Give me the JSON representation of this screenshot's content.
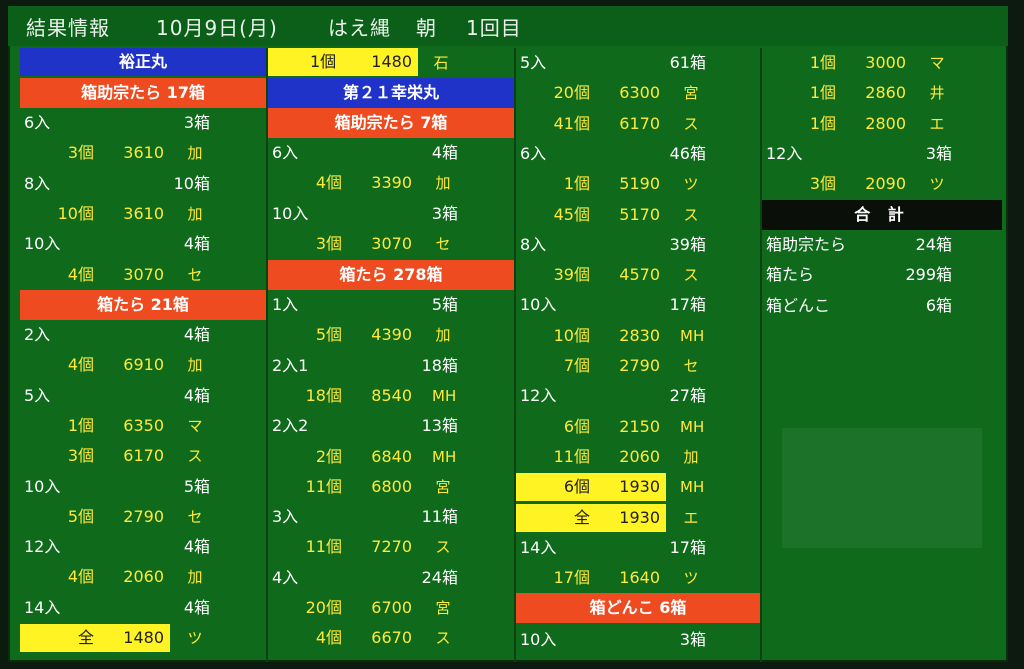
{
  "title": {
    "a": "結果情報",
    "date": "10月9日(月)",
    "b": "はえ縄",
    "c": "朝",
    "d": "1回目"
  },
  "col1": {
    "vessel": "裕正丸",
    "cat1": "箱助宗たら 17箱",
    "rows1": [
      {
        "t": "in",
        "size": "6入",
        "boxes": "3箱"
      },
      {
        "t": "price",
        "q": "3個",
        "p": "3610",
        "m": "加"
      },
      {
        "t": "in",
        "size": "8入",
        "boxes": "10箱"
      },
      {
        "t": "price",
        "q": "10個",
        "p": "3610",
        "m": "加"
      },
      {
        "t": "in",
        "size": "10入",
        "boxes": "4箱"
      },
      {
        "t": "price",
        "q": "4個",
        "p": "3070",
        "m": "セ"
      }
    ],
    "cat2": "箱たら 21箱",
    "rows2": [
      {
        "t": "in",
        "size": "2入",
        "boxes": "4箱"
      },
      {
        "t": "price",
        "q": "4個",
        "p": "6910",
        "m": "加"
      },
      {
        "t": "in",
        "size": "5入",
        "boxes": "4箱"
      },
      {
        "t": "price",
        "q": "1個",
        "p": "6350",
        "m": "マ"
      },
      {
        "t": "price",
        "q": "3個",
        "p": "6170",
        "m": "ス"
      },
      {
        "t": "in",
        "size": "10入",
        "boxes": "5箱"
      },
      {
        "t": "price",
        "q": "5個",
        "p": "2790",
        "m": "セ"
      },
      {
        "t": "in",
        "size": "12入",
        "boxes": "4箱"
      },
      {
        "t": "price",
        "q": "4個",
        "p": "2060",
        "m": "加"
      },
      {
        "t": "in",
        "size": "14入",
        "boxes": "4箱"
      },
      {
        "t": "yprice",
        "q": "全",
        "p": "1480",
        "m": "ツ"
      }
    ]
  },
  "col2": {
    "top": {
      "q": "1個",
      "p": "1480",
      "m": "石"
    },
    "vessel": "第２１幸栄丸",
    "cat1": "箱助宗たら 7箱",
    "rows1": [
      {
        "t": "in",
        "size": "6入",
        "boxes": "4箱"
      },
      {
        "t": "price",
        "q": "4個",
        "p": "3390",
        "m": "加"
      },
      {
        "t": "in",
        "size": "10入",
        "boxes": "3箱"
      },
      {
        "t": "price",
        "q": "3個",
        "p": "3070",
        "m": "セ"
      }
    ],
    "cat2": "箱たら 278箱",
    "rows2": [
      {
        "t": "in",
        "size": "1入",
        "boxes": "5箱"
      },
      {
        "t": "price",
        "q": "5個",
        "p": "4390",
        "m": "加"
      },
      {
        "t": "in",
        "size": "2入1",
        "boxes": "18箱"
      },
      {
        "t": "price",
        "q": "18個",
        "p": "8540",
        "m": "MH"
      },
      {
        "t": "in",
        "size": "2入2",
        "boxes": "13箱"
      },
      {
        "t": "price",
        "q": "2個",
        "p": "6840",
        "m": "MH"
      },
      {
        "t": "price",
        "q": "11個",
        "p": "6800",
        "m": "宮"
      },
      {
        "t": "in",
        "size": "3入",
        "boxes": "11箱"
      },
      {
        "t": "price",
        "q": "11個",
        "p": "7270",
        "m": "ス"
      },
      {
        "t": "in",
        "size": "4入",
        "boxes": "24箱"
      },
      {
        "t": "price",
        "q": "20個",
        "p": "6700",
        "m": "宮"
      },
      {
        "t": "price",
        "q": "4個",
        "p": "6670",
        "m": "ス"
      }
    ]
  },
  "col3": {
    "rows": [
      {
        "t": "in",
        "size": "5入",
        "boxes": "61箱"
      },
      {
        "t": "price",
        "q": "20個",
        "p": "6300",
        "m": "宮"
      },
      {
        "t": "price",
        "q": "41個",
        "p": "6170",
        "m": "ス"
      },
      {
        "t": "in",
        "size": "6入",
        "boxes": "46箱"
      },
      {
        "t": "price",
        "q": "1個",
        "p": "5190",
        "m": "ツ"
      },
      {
        "t": "price",
        "q": "45個",
        "p": "5170",
        "m": "ス"
      },
      {
        "t": "in",
        "size": "8入",
        "boxes": "39箱"
      },
      {
        "t": "price",
        "q": "39個",
        "p": "4570",
        "m": "ス"
      },
      {
        "t": "in",
        "size": "10入",
        "boxes": "17箱"
      },
      {
        "t": "price",
        "q": "10個",
        "p": "2830",
        "m": "MH"
      },
      {
        "t": "price",
        "q": "7個",
        "p": "2790",
        "m": "セ"
      },
      {
        "t": "in",
        "size": "12入",
        "boxes": "27箱"
      },
      {
        "t": "price",
        "q": "6個",
        "p": "2150",
        "m": "MH"
      },
      {
        "t": "price",
        "q": "11個",
        "p": "2060",
        "m": "加"
      },
      {
        "t": "yprice",
        "q": "6個",
        "p": "1930",
        "m": "MH"
      },
      {
        "t": "yprice",
        "q": "全",
        "p": "1930",
        "m": "エ"
      },
      {
        "t": "in",
        "size": "14入",
        "boxes": "17箱"
      },
      {
        "t": "price",
        "q": "17個",
        "p": "1640",
        "m": "ツ"
      }
    ],
    "cat": "箱どんこ 6箱",
    "last": {
      "size": "10入",
      "boxes": "3箱"
    }
  },
  "col4": {
    "rows": [
      {
        "t": "price",
        "q": "1個",
        "p": "3000",
        "m": "マ"
      },
      {
        "t": "price",
        "q": "1個",
        "p": "2860",
        "m": "井"
      },
      {
        "t": "price",
        "q": "1個",
        "p": "2800",
        "m": "エ"
      },
      {
        "t": "in",
        "size": "12入",
        "boxes": "3箱"
      },
      {
        "t": "price",
        "q": "3個",
        "p": "2090",
        "m": "ツ"
      }
    ],
    "total_header": "合 計",
    "totals": [
      {
        "label": "箱助宗たら",
        "value": "24箱"
      },
      {
        "label": "箱たら",
        "value": "299箱"
      },
      {
        "label": "箱どんこ",
        "value": "6箱"
      }
    ]
  }
}
